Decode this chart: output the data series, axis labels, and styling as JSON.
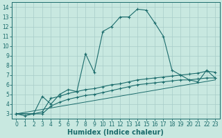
{
  "xlabel": "Humidex (Indice chaleur)",
  "background_color": "#c8e8e0",
  "grid_color": "#a8ccc8",
  "line_color": "#1a6b6b",
  "xlim": [
    -0.5,
    23.5
  ],
  "ylim": [
    2.5,
    14.5
  ],
  "xticks": [
    0,
    1,
    2,
    3,
    4,
    5,
    6,
    7,
    8,
    9,
    10,
    11,
    12,
    13,
    14,
    15,
    16,
    17,
    18,
    19,
    20,
    21,
    22,
    23
  ],
  "yticks": [
    3,
    4,
    5,
    6,
    7,
    8,
    9,
    10,
    11,
    12,
    13,
    14
  ],
  "curve1_x": [
    0,
    1,
    2,
    3,
    4,
    5,
    6,
    7,
    8,
    9,
    10,
    11,
    12,
    13,
    14,
    15,
    16,
    17,
    18,
    19,
    20,
    21,
    22,
    23
  ],
  "curve1_y": [
    3.0,
    2.8,
    3.0,
    4.8,
    4.0,
    5.0,
    5.5,
    5.3,
    9.2,
    7.3,
    11.5,
    12.0,
    13.0,
    13.0,
    13.8,
    13.7,
    12.4,
    11.0,
    7.5,
    7.0,
    6.5,
    6.3,
    7.5,
    6.7
  ],
  "curve2_x": [
    0,
    2,
    3,
    4,
    5,
    6,
    7,
    8,
    9,
    10,
    11,
    12,
    13,
    14,
    15,
    16,
    17,
    18,
    19,
    20,
    21,
    22,
    23
  ],
  "curve2_y": [
    3.0,
    3.0,
    3.2,
    4.6,
    4.8,
    5.1,
    5.3,
    5.5,
    5.6,
    5.8,
    6.0,
    6.1,
    6.3,
    6.5,
    6.6,
    6.7,
    6.8,
    6.9,
    7.0,
    7.1,
    7.2,
    7.4,
    7.3
  ],
  "curve3_x": [
    0,
    2,
    3,
    4,
    5,
    6,
    7,
    8,
    9,
    10,
    11,
    12,
    13,
    14,
    15,
    16,
    17,
    18,
    19,
    20,
    21,
    22,
    23
  ],
  "curve3_y": [
    3.0,
    3.0,
    3.0,
    3.8,
    4.2,
    4.5,
    4.7,
    4.9,
    5.0,
    5.2,
    5.4,
    5.6,
    5.8,
    6.0,
    6.1,
    6.2,
    6.3,
    6.4,
    6.5,
    6.5,
    6.6,
    6.7,
    6.7
  ],
  "curve4_x": [
    0,
    23
  ],
  "curve4_y": [
    3.0,
    6.5
  ],
  "font_size": 7,
  "marker_size": 2.5,
  "marker": "+"
}
